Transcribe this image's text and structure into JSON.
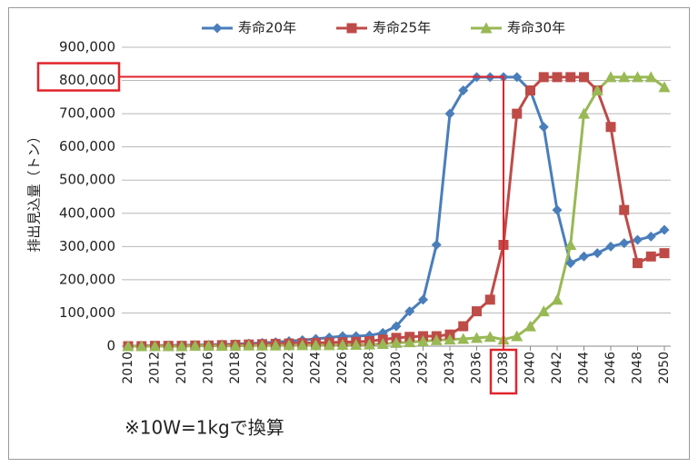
{
  "chart_data": {
    "type": "line",
    "y_label": "排出見込量（トン）",
    "note": "※10W=1kgで換算",
    "x": [
      2010,
      2011,
      2012,
      2013,
      2014,
      2015,
      2016,
      2017,
      2018,
      2019,
      2020,
      2021,
      2022,
      2023,
      2024,
      2025,
      2026,
      2027,
      2028,
      2029,
      2030,
      2031,
      2032,
      2033,
      2034,
      2035,
      2036,
      2037,
      2038,
      2039,
      2040,
      2041,
      2042,
      2043,
      2044,
      2045,
      2046,
      2047,
      2048,
      2049,
      2050
    ],
    "xlim": [
      2010,
      2050
    ],
    "xticks": [
      2010,
      2012,
      2014,
      2016,
      2018,
      2020,
      2022,
      2024,
      2026,
      2028,
      2030,
      2032,
      2034,
      2036,
      2038,
      2040,
      2042,
      2044,
      2046,
      2048,
      2050
    ],
    "ylim": [
      0,
      900000
    ],
    "yticks": [
      0,
      {
        "value": 100000,
        "label": "100,000"
      },
      {
        "value": 200000,
        "label": "200,000"
      },
      {
        "value": 300000,
        "label": "300,000"
      },
      {
        "value": 400000,
        "label": "400,000"
      },
      {
        "value": 500000,
        "label": "500,000"
      },
      {
        "value": 600000,
        "label": "600,000"
      },
      {
        "value": 700000,
        "label": "700,000"
      },
      {
        "value": 800000,
        "label": "800,000"
      },
      {
        "value": 900000,
        "label": "900,000"
      }
    ],
    "grid": true,
    "legend": "top",
    "series": [
      {
        "name": "寿命20年",
        "color": "#4a7ebb",
        "marker": "diamond",
        "values": [
          0,
          1000,
          2000,
          2000,
          3000,
          3000,
          4000,
          5000,
          6000,
          8000,
          10000,
          12000,
          15000,
          18000,
          22000,
          26000,
          30000,
          30000,
          32000,
          40000,
          60000,
          105000,
          140000,
          305000,
          700000,
          770000,
          810000,
          810000,
          810000,
          810000,
          770000,
          660000,
          410000,
          250000,
          270000,
          280000,
          300000,
          310000,
          320000,
          330000,
          350000
        ]
      },
      {
        "name": "寿命25年",
        "color": "#be4b48",
        "marker": "square",
        "values": [
          0,
          0,
          1000,
          1000,
          1000,
          2000,
          2000,
          3000,
          4000,
          5000,
          6000,
          7000,
          8000,
          9000,
          10000,
          11000,
          12000,
          13000,
          15000,
          20000,
          25000,
          28000,
          30000,
          30000,
          35000,
          60000,
          105000,
          140000,
          305000,
          700000,
          770000,
          810000,
          810000,
          810000,
          810000,
          770000,
          660000,
          410000,
          250000,
          270000,
          280000
        ]
      },
      {
        "name": "寿命30年",
        "color": "#98b954",
        "marker": "triangle",
        "values": [
          0,
          0,
          0,
          0,
          0,
          1000,
          1000,
          1000,
          1000,
          2000,
          2000,
          2000,
          3000,
          3000,
          3000,
          3000,
          4000,
          4000,
          5000,
          7000,
          10000,
          12000,
          15000,
          18000,
          20000,
          22000,
          25000,
          28000,
          20000,
          30000,
          60000,
          105000,
          140000,
          305000,
          700000,
          770000,
          810000,
          810000,
          810000,
          810000,
          780000
        ]
      }
    ]
  }
}
